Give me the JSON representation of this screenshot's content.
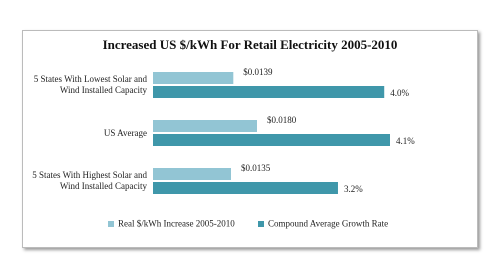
{
  "chart_data": {
    "type": "bar",
    "orientation": "horizontal",
    "title": "Increased US $/kWh For Retail Electricity 2005-2010",
    "categories": [
      "5 States With Lowest Solar and Wind Installed Capacity",
      "US Average",
      "5 States With Highest Solar and Wind Installed Capacity"
    ],
    "series": [
      {
        "name": "Real $/kWh Increase 2005-2010",
        "color": "#92c5d4",
        "values": [
          0.0139,
          0.018,
          0.0135
        ],
        "value_labels": [
          "$0.0139",
          "$0.0180",
          "$0.0135"
        ]
      },
      {
        "name": "Compound Average Growth Rate",
        "color": "#3f97aa",
        "values": [
          4.0,
          4.1,
          3.2
        ],
        "value_labels": [
          "4.0%",
          "4.1%",
          "3.2%"
        ]
      }
    ]
  }
}
